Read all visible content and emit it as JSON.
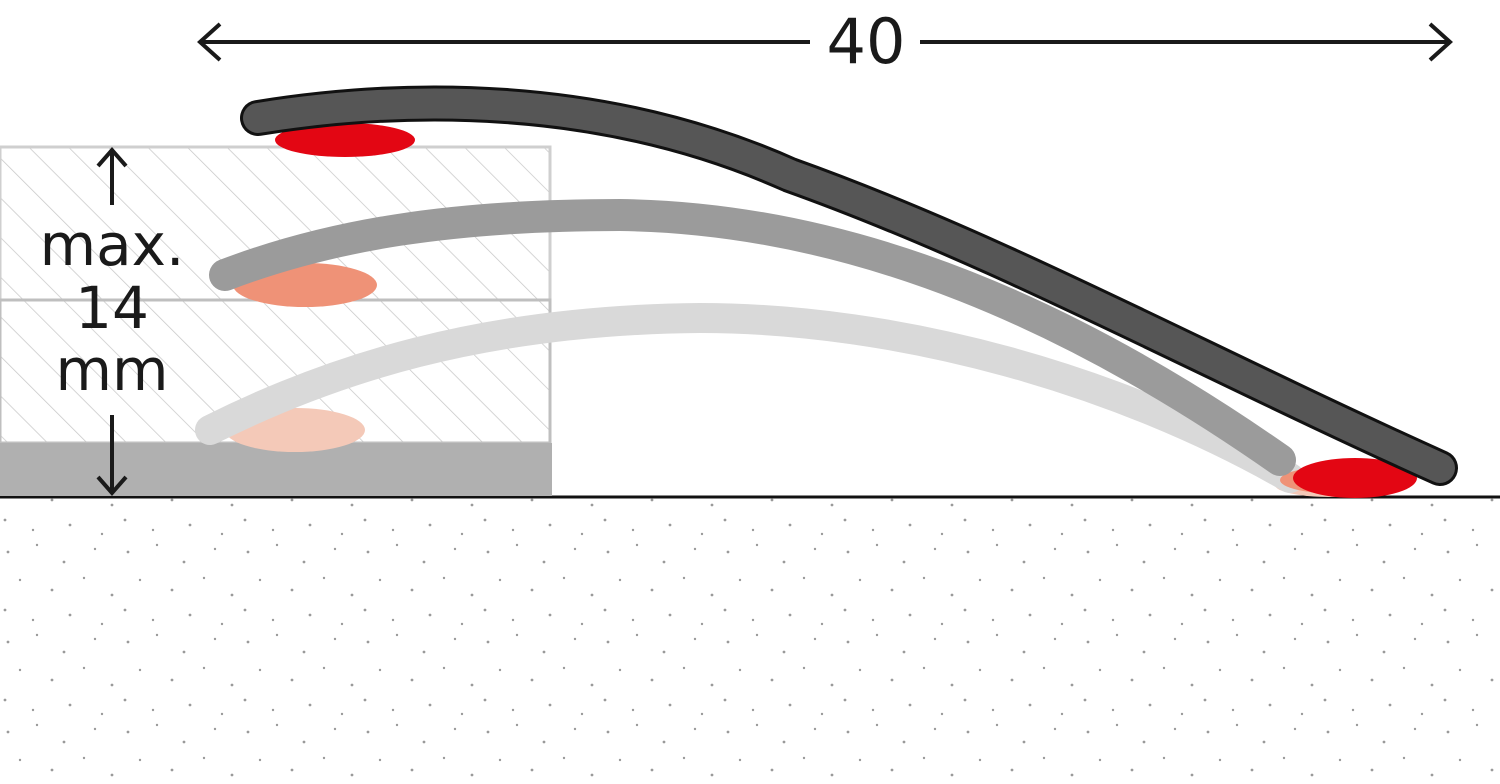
{
  "width_dimension": {
    "label": "40"
  },
  "height_dimension": {
    "lines": [
      "max.",
      "14",
      "mm"
    ]
  }
}
